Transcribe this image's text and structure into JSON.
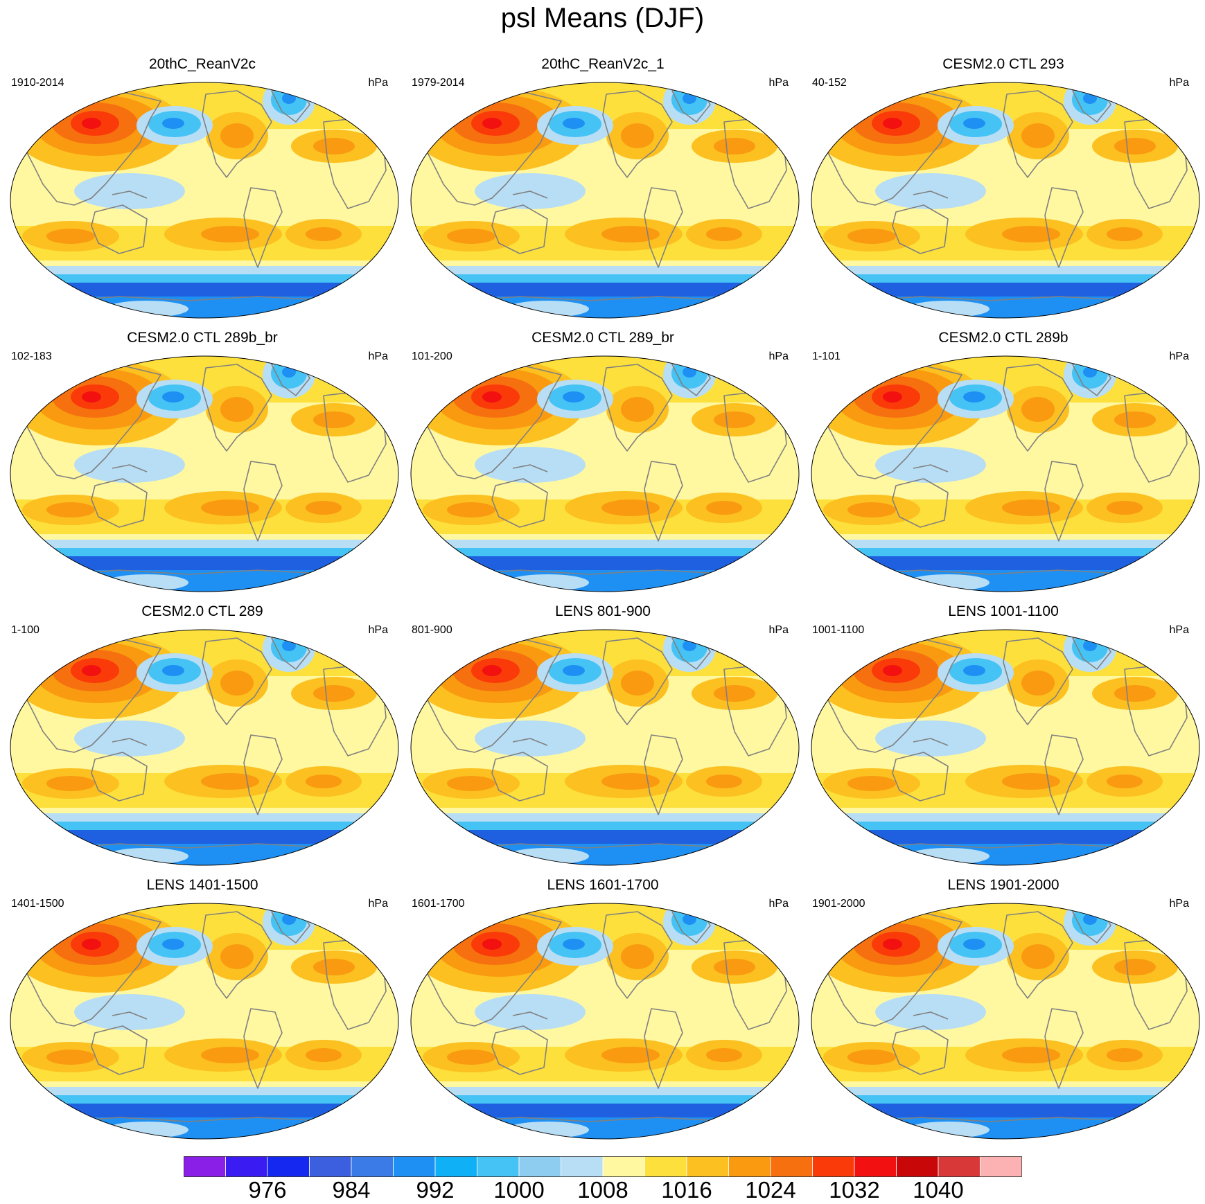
{
  "title": "psl Means (DJF)",
  "panels": [
    {
      "title": "20thC_ReanV2c",
      "period": "1910-2014",
      "units": "hPa"
    },
    {
      "title": "20thC_ReanV2c_1",
      "period": "1979-2014",
      "units": "hPa"
    },
    {
      "title": "CESM2.0 CTL 293",
      "period": "40-152",
      "units": "hPa"
    },
    {
      "title": "CESM2.0 CTL 289b_br",
      "period": "102-183",
      "units": "hPa"
    },
    {
      "title": "CESM2.0 CTL 289_br",
      "period": "101-200",
      "units": "hPa"
    },
    {
      "title": "CESM2.0 CTL 289b",
      "period": "1-101",
      "units": "hPa"
    },
    {
      "title": "CESM2.0 CTL 289",
      "period": "1-100",
      "units": "hPa"
    },
    {
      "title": "LENS 801-900",
      "period": "801-900",
      "units": "hPa"
    },
    {
      "title": "LENS 1001-1100",
      "period": "1001-1100",
      "units": "hPa"
    },
    {
      "title": "LENS 1401-1500",
      "period": "1401-1500",
      "units": "hPa"
    },
    {
      "title": "LENS 1601-1700",
      "period": "1601-1700",
      "units": "hPa"
    },
    {
      "title": "LENS 1901-2000",
      "period": "1901-2000",
      "units": "hPa"
    }
  ],
  "colorbar": {
    "colors": [
      "#8a1fe8",
      "#3a1cf2",
      "#1428f0",
      "#3c5fe0",
      "#3a7be8",
      "#1f90f3",
      "#0fb0f5",
      "#45c3f5",
      "#8fcdf0",
      "#b7def5",
      "#fff8a0",
      "#fde03c",
      "#fcc020",
      "#f99a10",
      "#f77010",
      "#fa3a08",
      "#f21010",
      "#c80808",
      "#d83838",
      "#fcb2b2"
    ],
    "labels": [
      "976",
      "984",
      "992",
      "1000",
      "1008",
      "1016",
      "1024",
      "1032",
      "1040"
    ]
  },
  "map_colors": {
    "polar_low": "#1f60e0",
    "sub_polar": "#1f90f3",
    "low": "#45c3f5",
    "light_low": "#b7def5",
    "mid": "#fff8a0",
    "high1": "#fde03c",
    "high2": "#fcc020",
    "high3": "#f99a10",
    "high4": "#f77010",
    "high5": "#fa3a08",
    "high6": "#f21010",
    "coast": "#808080"
  }
}
